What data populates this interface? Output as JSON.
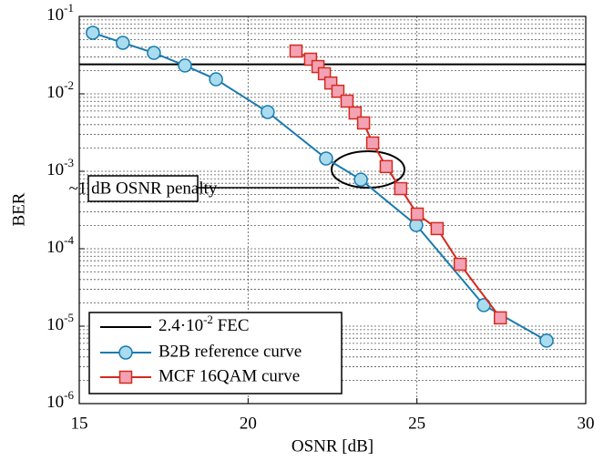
{
  "chart_data": {
    "type": "line",
    "xlabel": "OSNR [dB]",
    "ylabel": "BER",
    "xlim": [
      15,
      30
    ],
    "xticks": [
      15,
      20,
      25,
      30
    ],
    "ylim": [
      1e-06,
      0.1
    ],
    "yscale": "log",
    "yticks": [
      {
        "value": 1e-06,
        "label": "10",
        "exponent": "-6"
      },
      {
        "value": 1e-05,
        "label": "10",
        "exponent": "-5"
      },
      {
        "value": 0.0001,
        "label": "10",
        "exponent": "-4"
      },
      {
        "value": 0.001,
        "label": "10",
        "exponent": "-3"
      },
      {
        "value": 0.01,
        "label": "10",
        "exponent": "-2"
      },
      {
        "value": 0.1,
        "label": "10",
        "exponent": "-1"
      }
    ],
    "grid": true,
    "legend": "lower left",
    "reference_line": {
      "value": 0.024,
      "label": "2.4·10",
      "exponent": "-2",
      "suffix": " FEC",
      "color": "#000000"
    },
    "annotation": "~1 dB OSNR penalty",
    "series": [
      {
        "name": "B2B reference curve",
        "color": "#1a7bb0",
        "marker_fill": "#a8dcee",
        "marker": "circle",
        "x": [
          15.4,
          16.29,
          17.21,
          18.13,
          19.05,
          20.58,
          22.31,
          23.34,
          24.98,
          26.98,
          28.84
        ],
        "values": [
          0.0614,
          0.0456,
          0.0338,
          0.0232,
          0.0154,
          0.00582,
          0.00146,
          0.00078,
          0.000202,
          1.87e-05,
          6.5e-06
        ]
      },
      {
        "name": "MCF 16QAM curve",
        "color": "#d42a1e",
        "marker_fill": "#f3a2b4",
        "marker": "square",
        "x": [
          21.42,
          21.85,
          22.07,
          22.26,
          22.45,
          22.66,
          22.93,
          23.17,
          23.42,
          23.69,
          24.09,
          24.52,
          25.01,
          25.6,
          26.28,
          27.47
        ],
        "values": [
          0.0357,
          0.028,
          0.0225,
          0.0182,
          0.0138,
          0.0108,
          0.00805,
          0.00566,
          0.00421,
          0.00232,
          0.00115,
          0.000597,
          0.00028,
          0.000182,
          6.3e-05,
          1.28e-05
        ]
      }
    ]
  }
}
